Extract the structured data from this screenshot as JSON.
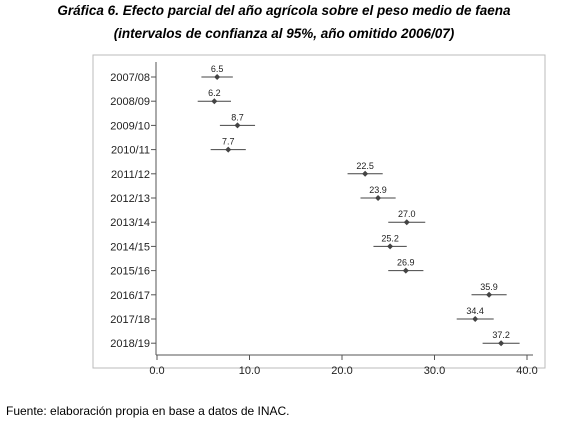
{
  "figure": {
    "title_line1": "Gráfica 6. Efecto parcial del año agrícola sobre el peso medio de faena",
    "title_line2": "(intervalos de confianza al 95%, año omitido 2006/07)",
    "source": "Fuente: elaboración propia en base a datos de INAC."
  },
  "chart_data": {
    "type": "scatter",
    "orientation": "horizontal",
    "title": "",
    "xlabel": "",
    "ylabel": "",
    "xlim": [
      0,
      40
    ],
    "xticks": [
      0,
      10,
      20,
      30,
      40
    ],
    "xtick_labels": [
      "0.0",
      "10.0",
      "20.0",
      "30.0",
      "40.0"
    ],
    "categories": [
      "2007/08",
      "2008/09",
      "2009/10",
      "2010/11",
      "2011/12",
      "2012/13",
      "2013/14",
      "2014/15",
      "2015/16",
      "2016/17",
      "2017/18",
      "2018/19"
    ],
    "values": [
      6.5,
      6.2,
      8.7,
      7.7,
      22.5,
      23.9,
      27.0,
      25.2,
      26.9,
      35.9,
      34.4,
      37.2
    ],
    "value_labels": [
      "6.5",
      "6.2",
      "8.7",
      "7.7",
      "22.5",
      "23.9",
      "27.0",
      "25.2",
      "26.9",
      "35.9",
      "34.4",
      "37.2"
    ],
    "ci_low": [
      4.8,
      4.4,
      6.8,
      5.8,
      20.6,
      22.0,
      25.0,
      23.4,
      25.0,
      34.0,
      32.4,
      35.2
    ],
    "ci_high": [
      8.2,
      8.0,
      10.6,
      9.6,
      24.4,
      25.8,
      29.0,
      27.0,
      28.8,
      37.8,
      36.4,
      39.2
    ],
    "grid": false,
    "legend": "none",
    "colors": {
      "marker": "#444444",
      "axis": "#555555",
      "frame": "#bbbbbb",
      "text": "#222222"
    }
  }
}
